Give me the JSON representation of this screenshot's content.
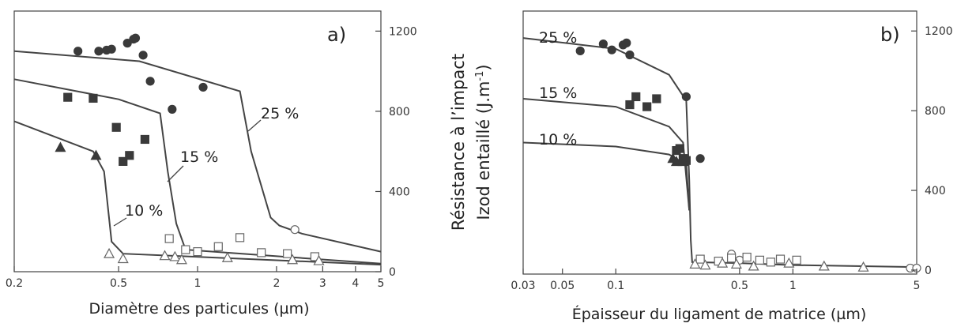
{
  "chart_data": [
    {
      "type": "scatter",
      "panel_label": "a)",
      "xlabel": "Diamètre des particules (µm)",
      "ylabel": "",
      "xscale": "log",
      "xlim": [
        0.2,
        5
      ],
      "ylim": [
        0,
        1300
      ],
      "x_ticks": [
        0.2,
        0.5,
        1,
        2,
        3,
        4,
        5
      ],
      "x_tick_labels": [
        "0.2",
        "0.5",
        "1",
        "2",
        "3",
        "4",
        "5"
      ],
      "y_ticks": [
        0,
        400,
        800,
        1200
      ],
      "y_tick_labels": [
        "0",
        "400",
        "800",
        "1200"
      ],
      "y_axis_side": "right",
      "series": [
        {
          "name": "25 %",
          "marker": "circle-filled",
          "points": [
            [
              0.35,
              1100
            ],
            [
              0.42,
              1100
            ],
            [
              0.45,
              1105
            ],
            [
              0.47,
              1110
            ],
            [
              0.54,
              1140
            ],
            [
              0.57,
              1160
            ],
            [
              0.58,
              1165
            ],
            [
              0.62,
              1080
            ],
            [
              0.66,
              950
            ],
            [
              0.8,
              810
            ],
            [
              1.05,
              920
            ]
          ],
          "curve": [
            [
              0.2,
              1100
            ],
            [
              0.6,
              1050
            ],
            [
              1.45,
              900
            ],
            [
              1.6,
              600
            ],
            [
              1.9,
              270
            ],
            [
              2.05,
              230
            ],
            [
              2.5,
              190
            ],
            [
              5,
              100
            ]
          ]
        },
        {
          "name": "15 %",
          "marker": "square-filled",
          "points": [
            [
              0.32,
              870
            ],
            [
              0.4,
              865
            ],
            [
              0.49,
              720
            ],
            [
              0.52,
              550
            ],
            [
              0.55,
              580
            ],
            [
              0.63,
              660
            ]
          ],
          "curve": [
            [
              0.2,
              960
            ],
            [
              0.5,
              860
            ],
            [
              0.72,
              790
            ],
            [
              0.77,
              500
            ],
            [
              0.83,
              240
            ],
            [
              0.9,
              110
            ],
            [
              5,
              40
            ]
          ]
        },
        {
          "name": "10 %",
          "marker": "triangle-filled",
          "points": [
            [
              0.3,
              620
            ],
            [
              0.41,
              580
            ]
          ],
          "curve": [
            [
              0.2,
              750
            ],
            [
              0.4,
              600
            ],
            [
              0.44,
              500
            ],
            [
              0.47,
              150
            ],
            [
              0.52,
              90
            ],
            [
              5,
              35
            ]
          ]
        },
        {
          "name": "",
          "marker": "circle-open",
          "points": [
            [
              2.35,
              210
            ]
          ]
        },
        {
          "name": "",
          "marker": "square-open",
          "points": [
            [
              0.78,
              165
            ],
            [
              0.9,
              110
            ],
            [
              1,
              100
            ],
            [
              1.2,
              125
            ],
            [
              1.45,
              170
            ],
            [
              1.75,
              95
            ],
            [
              2.2,
              90
            ],
            [
              2.8,
              75
            ]
          ]
        },
        {
          "name": "",
          "marker": "triangle-open",
          "points": [
            [
              0.46,
              90
            ],
            [
              0.52,
              65
            ],
            [
              0.75,
              80
            ],
            [
              0.82,
              75
            ],
            [
              0.87,
              60
            ],
            [
              1.3,
              70
            ],
            [
              2.3,
              60
            ],
            [
              2.9,
              55
            ]
          ]
        }
      ]
    },
    {
      "type": "scatter",
      "panel_label": "b)",
      "xlabel": "Épaisseur du ligament de matrice (µm)",
      "ylabel": "Résistance à l’impact Izod entaillé (J.m-1)",
      "ylabel_lines": [
        "Résistance à l’impact",
        "Izod entaillé (J.m",
        "-1",
        ")"
      ],
      "xscale": "log",
      "xlim": [
        0.03,
        5
      ],
      "ylim": [
        -20,
        1300
      ],
      "x_ticks": [
        0.03,
        0.05,
        0.1,
        0.5,
        1,
        5
      ],
      "x_tick_labels": [
        "0.03",
        "0.05",
        "0.1",
        "0.5",
        "1",
        "5"
      ],
      "y_ticks": [
        0,
        400,
        800,
        1200
      ],
      "y_tick_labels": [
        "0",
        "400",
        "800",
        "1200"
      ],
      "y_axis_side": "right",
      "series": [
        {
          "name": "25 %",
          "marker": "circle-filled",
          "points": [
            [
              0.063,
              1100
            ],
            [
              0.085,
              1135
            ],
            [
              0.095,
              1105
            ],
            [
              0.11,
              1130
            ],
            [
              0.115,
              1140
            ],
            [
              0.12,
              1080
            ],
            [
              0.25,
              870
            ],
            [
              0.3,
              560
            ]
          ],
          "curve": [
            [
              0.03,
              1165
            ],
            [
              0.1,
              1110
            ],
            [
              0.2,
              980
            ],
            [
              0.25,
              850
            ],
            [
              0.26,
              450
            ],
            [
              0.265,
              150
            ],
            [
              0.27,
              40
            ],
            [
              0.5,
              35
            ],
            [
              1,
              25
            ],
            [
              5,
              15
            ]
          ]
        },
        {
          "name": "15 %",
          "marker": "square-filled",
          "points": [
            [
              0.12,
              830
            ],
            [
              0.13,
              870
            ],
            [
              0.15,
              820
            ],
            [
              0.17,
              860
            ],
            [
              0.23,
              610
            ],
            [
              0.22,
              600
            ],
            [
              0.24,
              560
            ],
            [
              0.25,
              550
            ]
          ],
          "curve": [
            [
              0.03,
              860
            ],
            [
              0.1,
              820
            ],
            [
              0.2,
              720
            ],
            [
              0.24,
              640
            ],
            [
              0.26,
              300
            ]
          ]
        },
        {
          "name": "10 %",
          "marker": "triangle-filled",
          "points": [
            [
              0.21,
              560
            ],
            [
              0.22,
              545
            ],
            [
              0.24,
              545
            ]
          ],
          "curve": [
            [
              0.03,
              640
            ],
            [
              0.1,
              620
            ],
            [
              0.2,
              580
            ],
            [
              0.25,
              530
            ],
            [
              0.26,
              300
            ]
          ]
        },
        {
          "name": "",
          "marker": "circle-open",
          "points": [
            [
              0.45,
              80
            ],
            [
              0.5,
              50
            ],
            [
              4.6,
              10
            ],
            [
              5,
              10
            ]
          ]
        },
        {
          "name": "",
          "marker": "square-open",
          "points": [
            [
              0.3,
              55
            ],
            [
              0.38,
              45
            ],
            [
              0.45,
              60
            ],
            [
              0.55,
              65
            ],
            [
              0.65,
              50
            ],
            [
              0.85,
              55
            ],
            [
              1.05,
              50
            ],
            [
              0.75,
              40
            ]
          ]
        },
        {
          "name": "",
          "marker": "triangle-open",
          "points": [
            [
              0.28,
              30
            ],
            [
              0.32,
              25
            ],
            [
              0.4,
              35
            ],
            [
              0.48,
              30
            ],
            [
              0.6,
              20
            ],
            [
              0.95,
              35
            ],
            [
              1.5,
              20
            ],
            [
              2.5,
              15
            ]
          ]
        }
      ]
    }
  ]
}
